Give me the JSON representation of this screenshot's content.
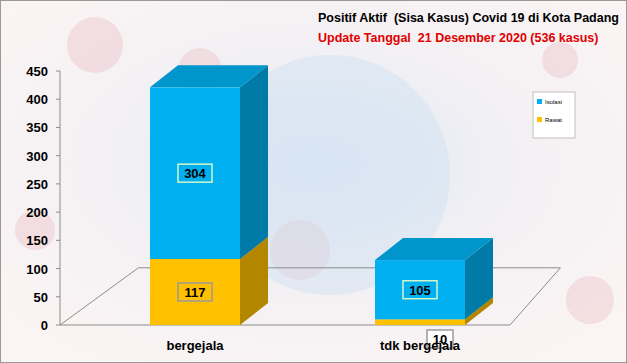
{
  "chart_data": {
    "type": "bar",
    "stacked": true,
    "data_labels": true,
    "legend": "right",
    "grid": false,
    "title": "Positif Aktif  (Sisa Kasus) Covid 19 di Kota Padang",
    "subtitle": "Update Tanggal  21 Desember 2020 (536 kasus)",
    "categories": [
      "bergejala",
      "tdk bergejala"
    ],
    "series": [
      {
        "name": "Isolasi",
        "color": "#00b0f0",
        "values": [
          304,
          105
        ]
      },
      {
        "name": "Rawat",
        "color": "#ffc000",
        "values": [
          117,
          10
        ]
      }
    ],
    "ylim": [
      0,
      450
    ],
    "yticks": [
      0,
      50,
      100,
      150,
      200,
      250,
      300,
      350,
      400,
      450
    ]
  }
}
